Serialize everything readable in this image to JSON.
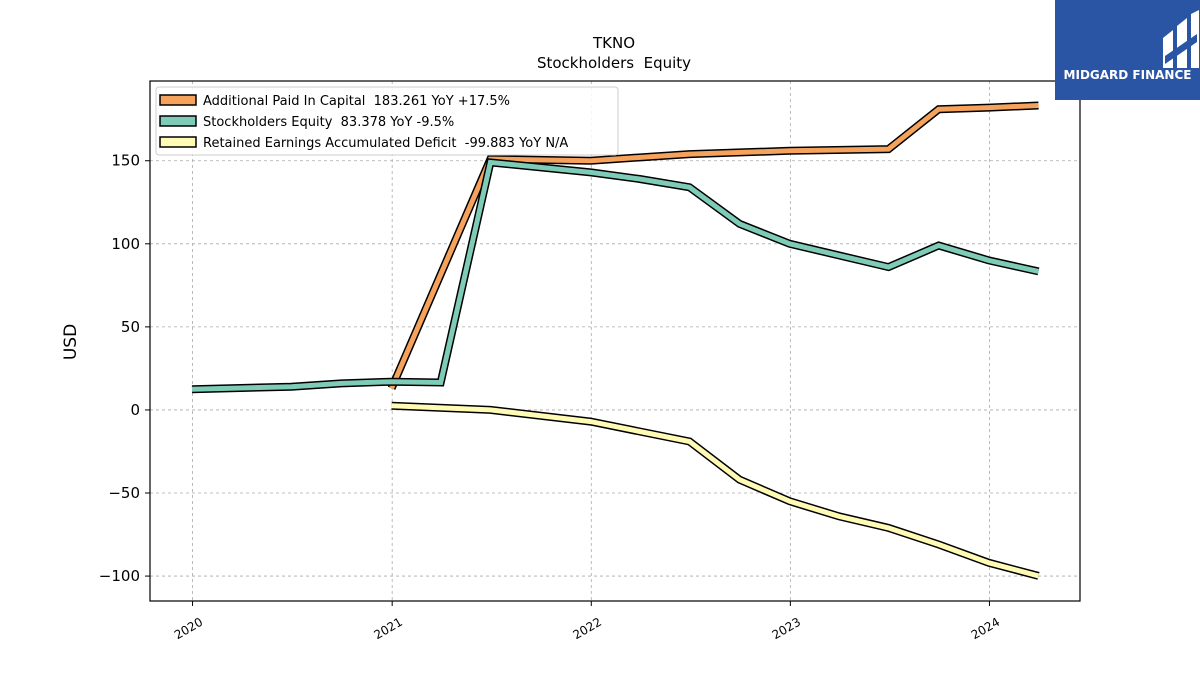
{
  "brand": {
    "name": "MIDGARD FINANCE",
    "bg_color": "#2a55a5"
  },
  "chart_data": {
    "type": "line",
    "title": "TKNO",
    "subtitle": "Stockholders  Equity",
    "xlabel": "",
    "ylabel": "USD",
    "xlim": [
      "2019-10-15",
      "2024-06-15"
    ],
    "ylim": [
      -115,
      198
    ],
    "x_ticks": [
      "2020",
      "2021",
      "2022",
      "2023",
      "2024"
    ],
    "y_ticks": [
      -100,
      -50,
      0,
      50,
      100,
      150
    ],
    "grid": true,
    "legend_position": "top-left",
    "series": [
      {
        "name": "Additional Paid In Capital  183.261 YoY +17.5%",
        "color": "#f5a25d",
        "points": [
          [
            "2020-12-31",
            13
          ],
          [
            "2021-06-30",
            151
          ],
          [
            "2021-12-31",
            150
          ],
          [
            "2022-06-30",
            154
          ],
          [
            "2022-12-31",
            156
          ],
          [
            "2023-06-30",
            157
          ],
          [
            "2023-09-30",
            181
          ],
          [
            "2023-12-31",
            182
          ],
          [
            "2024-03-31",
            183.261
          ]
        ]
      },
      {
        "name": "Stockholders Equity  83.378 YoY -9.5%",
        "color": "#7ecbb8",
        "points": [
          [
            "2019-12-31",
            12.5
          ],
          [
            "2020-06-30",
            14
          ],
          [
            "2020-09-30",
            16
          ],
          [
            "2020-12-31",
            17
          ],
          [
            "2021-03-31",
            16.5
          ],
          [
            "2021-06-30",
            149
          ],
          [
            "2021-12-31",
            143
          ],
          [
            "2022-03-31",
            139
          ],
          [
            "2022-06-30",
            134
          ],
          [
            "2022-09-30",
            112
          ],
          [
            "2022-12-31",
            100
          ],
          [
            "2023-03-31",
            93
          ],
          [
            "2023-06-30",
            86
          ],
          [
            "2023-09-30",
            99
          ],
          [
            "2023-12-31",
            90
          ],
          [
            "2024-03-31",
            83.378
          ]
        ]
      },
      {
        "name": "Retained Earnings Accumulated Deficit  -99.883 YoY N/A",
        "color": "#fffbb5",
        "points": [
          [
            "2020-12-31",
            2.5
          ],
          [
            "2021-06-30",
            0
          ],
          [
            "2021-12-31",
            -7
          ],
          [
            "2022-03-31",
            -13
          ],
          [
            "2022-06-30",
            -19
          ],
          [
            "2022-09-30",
            -42
          ],
          [
            "2022-12-31",
            -55
          ],
          [
            "2023-03-31",
            -64
          ],
          [
            "2023-06-30",
            -71
          ],
          [
            "2023-09-30",
            -81
          ],
          [
            "2023-12-31",
            -92
          ],
          [
            "2024-03-31",
            -99.883
          ]
        ]
      }
    ]
  }
}
